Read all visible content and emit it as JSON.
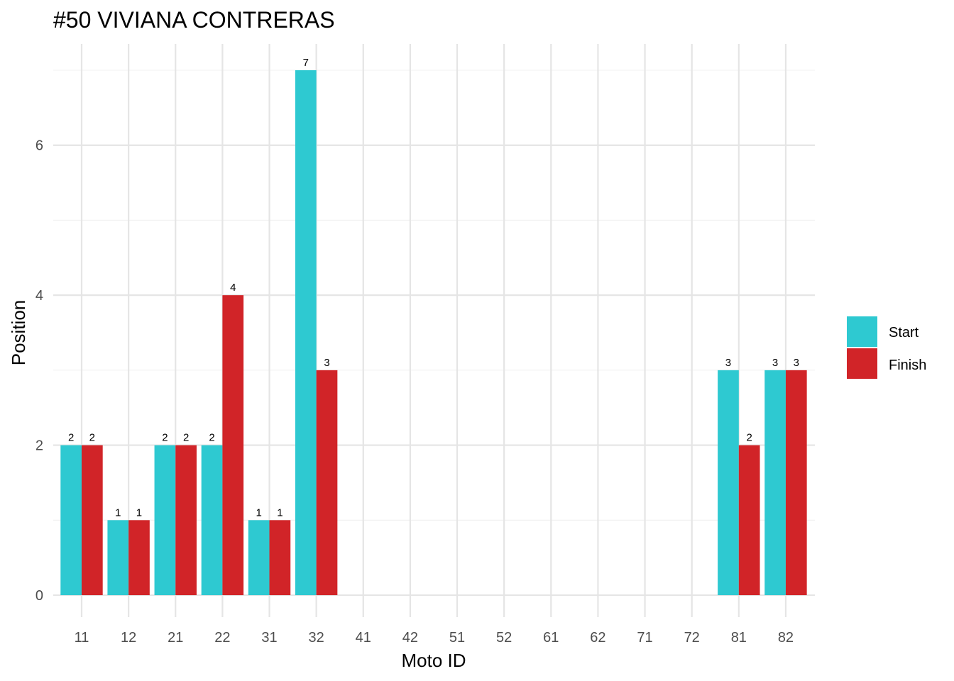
{
  "chart_data": {
    "type": "bar",
    "title": "#50 VIVIANA CONTRERAS",
    "xlabel": "Moto ID",
    "ylabel": "Position",
    "categories": [
      "11",
      "12",
      "21",
      "22",
      "31",
      "32",
      "41",
      "42",
      "51",
      "52",
      "61",
      "62",
      "71",
      "72",
      "81",
      "82"
    ],
    "series": [
      {
        "name": "Start",
        "color": "#2ec9d1",
        "values": [
          2,
          1,
          2,
          2,
          1,
          7,
          null,
          null,
          null,
          null,
          null,
          null,
          null,
          null,
          3,
          3
        ]
      },
      {
        "name": "Finish",
        "color": "#d12428",
        "values": [
          2,
          1,
          2,
          4,
          1,
          3,
          null,
          null,
          null,
          null,
          null,
          null,
          null,
          null,
          2,
          3
        ]
      }
    ],
    "ylim": [
      0,
      7
    ],
    "yticks": [
      0,
      2,
      4,
      6
    ],
    "grid": true,
    "legend_position": "right"
  }
}
